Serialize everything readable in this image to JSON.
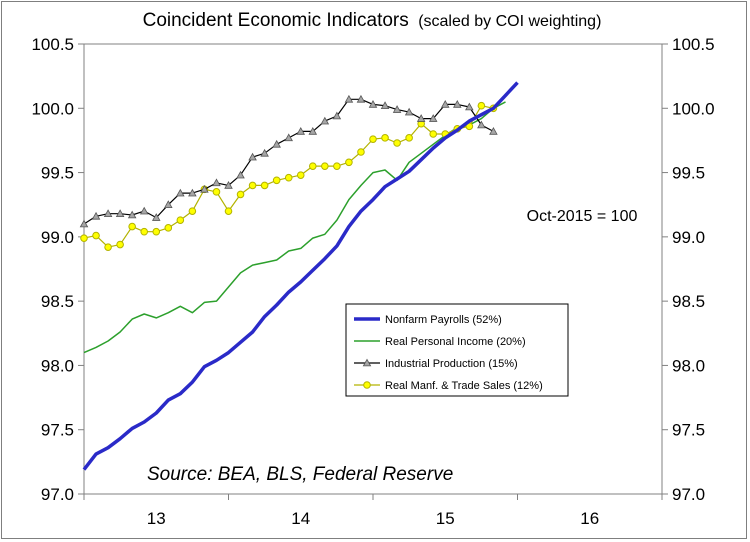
{
  "chart_data": {
    "type": "line",
    "title": "Coincident Economic Indicators",
    "subtitle": "(scaled by COI weighting)",
    "annotation": "Oct-2015 = 100",
    "source": "Source: BEA, BLS, Federal Reserve",
    "xlabel": "",
    "ylabel": "",
    "ylim": [
      97.0,
      100.5
    ],
    "y_ticks": [
      "97.0",
      "97.5",
      "98.0",
      "98.5",
      "99.0",
      "99.5",
      "100.0",
      "100.5"
    ],
    "xlim": [
      0,
      48
    ],
    "x_tick_labels": [
      {
        "label": "13",
        "at": 6
      },
      {
        "label": "14",
        "at": 18
      },
      {
        "label": "15",
        "at": 30
      },
      {
        "label": "16",
        "at": 42
      }
    ],
    "grid": false,
    "legend_position": "center-right",
    "series": [
      {
        "name": "Nonfarm Payrolls (52%)",
        "color": "#2a2ac8",
        "width": 3.5,
        "marker": "none",
        "start": 0,
        "values": [
          97.19,
          97.31,
          97.36,
          97.43,
          97.51,
          97.56,
          97.63,
          97.73,
          97.78,
          97.87,
          97.99,
          98.04,
          98.1,
          98.18,
          98.26,
          98.38,
          98.47,
          98.57,
          98.65,
          98.74,
          98.83,
          98.93,
          99.08,
          99.2,
          99.29,
          99.39,
          99.45,
          99.51,
          99.6,
          99.69,
          99.77,
          99.83,
          99.9,
          99.95,
          100.0,
          100.1,
          100.2
        ]
      },
      {
        "name": "Real Personal Income (20%)",
        "color": "#2ca02c",
        "width": 1.5,
        "marker": "none",
        "start": 0,
        "values": [
          98.1,
          98.14,
          98.19,
          98.26,
          98.36,
          98.4,
          98.37,
          98.41,
          98.46,
          98.41,
          98.49,
          98.5,
          98.61,
          98.72,
          98.78,
          98.8,
          98.82,
          98.89,
          98.91,
          98.99,
          99.02,
          99.13,
          99.29,
          99.4,
          99.5,
          99.52,
          99.44,
          99.58,
          99.65,
          99.72,
          99.79,
          99.85,
          99.87,
          99.92,
          100.0,
          100.05
        ]
      },
      {
        "name": "Industrial Production (15%)",
        "color": "#000000",
        "width": 1.2,
        "marker": "triangle",
        "marker_fill": "#a6a6a6",
        "start": 0,
        "values": [
          99.1,
          99.16,
          99.18,
          99.18,
          99.17,
          99.2,
          99.15,
          99.25,
          99.34,
          99.34,
          99.37,
          99.42,
          99.4,
          99.48,
          99.62,
          99.65,
          99.72,
          99.77,
          99.82,
          99.82,
          99.9,
          99.94,
          100.07,
          100.07,
          100.03,
          100.02,
          99.99,
          99.97,
          99.92,
          99.92,
          100.03,
          100.03,
          100.01,
          99.87,
          99.82
        ]
      },
      {
        "name": "Real Manf. & Trade Sales (12%)",
        "color": "#b3b300",
        "width": 1.2,
        "marker": "circle",
        "marker_fill": "#ffff00",
        "start": 0,
        "values": [
          98.99,
          99.01,
          98.92,
          98.94,
          99.08,
          99.04,
          99.04,
          99.07,
          99.13,
          99.2,
          99.37,
          99.35,
          99.2,
          99.33,
          99.4,
          99.4,
          99.44,
          99.46,
          99.48,
          99.55,
          99.55,
          99.55,
          99.58,
          99.66,
          99.76,
          99.77,
          99.73,
          99.77,
          99.88,
          99.8,
          99.8,
          99.84,
          99.86,
          100.02,
          100.0
        ]
      }
    ]
  }
}
